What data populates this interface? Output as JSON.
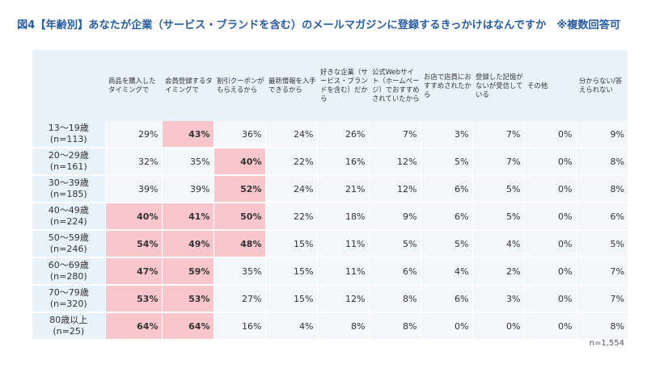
{
  "title": "図4【年齢別】あなたが企業（サービス・ブランドを含む）のメールマガジンに登録するきっかけはなんですか　※複数回答可",
  "colors": {
    "title": "#2a5d9f",
    "panel": "#e8f2fa",
    "highlight": "#f9c7cb",
    "cell": "#f4f6f9"
  },
  "chart_data": {
    "type": "table",
    "columns": [
      "商品を購入したタイミングで",
      "会員登録するタイミングで",
      "割引クーポンがもらえるから",
      "最新情報を入手できるから",
      "好きな企業（サービス・ブランドを含む）だから",
      "公式Webサイト（ホームページ）でおすすめされていたから",
      "お店で店員におすすめされたから",
      "登録した記憶がないが受信している",
      "その他",
      "分からない/答えられない"
    ],
    "rows": [
      {
        "label": "13～19歳\n(n=113)",
        "values": [
          "29%",
          "43%",
          "36%",
          "24%",
          "26%",
          "7%",
          "3%",
          "7%",
          "0%",
          "9%"
        ],
        "highlight": [
          1
        ]
      },
      {
        "label": "20～29歳\n(n=161)",
        "values": [
          "32%",
          "35%",
          "40%",
          "22%",
          "16%",
          "12%",
          "5%",
          "7%",
          "0%",
          "8%"
        ],
        "highlight": [
          2
        ]
      },
      {
        "label": "30～39歳\n(n=185)",
        "values": [
          "39%",
          "39%",
          "52%",
          "24%",
          "21%",
          "12%",
          "6%",
          "5%",
          "0%",
          "8%"
        ],
        "highlight": [
          2
        ]
      },
      {
        "label": "40～49歳\n(n=224)",
        "values": [
          "40%",
          "41%",
          "50%",
          "22%",
          "18%",
          "9%",
          "6%",
          "5%",
          "0%",
          "6%"
        ],
        "highlight": [
          0,
          1,
          2
        ]
      },
      {
        "label": "50～59歳\n(n=246)",
        "values": [
          "54%",
          "49%",
          "48%",
          "15%",
          "11%",
          "5%",
          "5%",
          "4%",
          "0%",
          "5%"
        ],
        "highlight": [
          0,
          1,
          2
        ]
      },
      {
        "label": "60～69歳\n(n=280)",
        "values": [
          "47%",
          "59%",
          "35%",
          "15%",
          "11%",
          "6%",
          "4%",
          "2%",
          "0%",
          "7%"
        ],
        "highlight": [
          0,
          1
        ]
      },
      {
        "label": "70～79歳\n(n=320)",
        "values": [
          "53%",
          "53%",
          "27%",
          "15%",
          "12%",
          "8%",
          "6%",
          "3%",
          "0%",
          "7%"
        ],
        "highlight": [
          0,
          1
        ]
      },
      {
        "label": "80歳以上\n(n=25)",
        "values": [
          "64%",
          "64%",
          "16%",
          "4%",
          "8%",
          "8%",
          "0%",
          "0%",
          "0%",
          "8%"
        ],
        "highlight": [
          0,
          1
        ]
      }
    ]
  },
  "footnote": "n=1,554"
}
